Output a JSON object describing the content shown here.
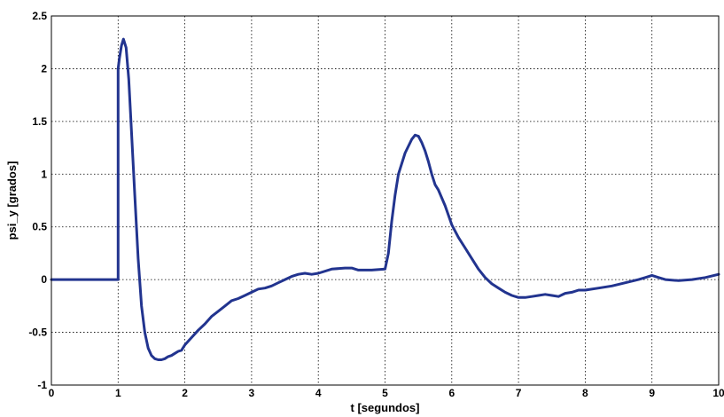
{
  "chart_data": {
    "type": "line",
    "title": "",
    "xlabel": "t  [segundos]",
    "ylabel": "psi_y  [grados]",
    "xlim": [
      0,
      10
    ],
    "ylim": [
      -1,
      2.5
    ],
    "xticks": [
      "0",
      "1",
      "2",
      "3",
      "4",
      "5",
      "6",
      "7",
      "8",
      "9",
      "10"
    ],
    "yticks": [
      "-1",
      "-0.5",
      "0",
      "0.5",
      "1",
      "1.5",
      "2",
      "2.5"
    ],
    "grid": true,
    "line_color": "#22348f",
    "series": [
      {
        "x": [
          0,
          1.0,
          1.0,
          1.02,
          1.05,
          1.08,
          1.12,
          1.16,
          1.2,
          1.25,
          1.3,
          1.35,
          1.4,
          1.45,
          1.5,
          1.55,
          1.6,
          1.65,
          1.7,
          1.75,
          1.8,
          1.85,
          1.9,
          1.95,
          2.0,
          2.1,
          2.2,
          2.3,
          2.4,
          2.5,
          2.6,
          2.7,
          2.8,
          2.9,
          3.0,
          3.1,
          3.2,
          3.3,
          3.4,
          3.5,
          3.6,
          3.7,
          3.8,
          3.9,
          4.0,
          4.2,
          4.4,
          4.5,
          4.6,
          4.8,
          5.0,
          5.05,
          5.1,
          5.15,
          5.2,
          5.3,
          5.4,
          5.45,
          5.5,
          5.55,
          5.6,
          5.65,
          5.7,
          5.75,
          5.8,
          5.9,
          6.0,
          6.1,
          6.2,
          6.3,
          6.4,
          6.5,
          6.6,
          6.7,
          6.8,
          6.9,
          7.0,
          7.1,
          7.2,
          7.3,
          7.4,
          7.5,
          7.6,
          7.7,
          7.8,
          7.9,
          8.0,
          8.2,
          8.4,
          8.6,
          8.8,
          8.9,
          9.0,
          9.1,
          9.2,
          9.4,
          9.6,
          9.8,
          10.0
        ],
        "y": [
          0,
          0,
          2.0,
          2.1,
          2.22,
          2.28,
          2.2,
          1.9,
          1.4,
          0.8,
          0.2,
          -0.25,
          -0.5,
          -0.65,
          -0.72,
          -0.75,
          -0.76,
          -0.76,
          -0.75,
          -0.73,
          -0.72,
          -0.7,
          -0.68,
          -0.67,
          -0.62,
          -0.55,
          -0.48,
          -0.42,
          -0.35,
          -0.3,
          -0.25,
          -0.2,
          -0.18,
          -0.15,
          -0.12,
          -0.09,
          -0.08,
          -0.06,
          -0.03,
          0.0,
          0.03,
          0.05,
          0.06,
          0.05,
          0.06,
          0.1,
          0.11,
          0.11,
          0.09,
          0.09,
          0.1,
          0.25,
          0.55,
          0.8,
          1.0,
          1.2,
          1.33,
          1.37,
          1.36,
          1.3,
          1.22,
          1.12,
          1.0,
          0.9,
          0.85,
          0.7,
          0.52,
          0.4,
          0.3,
          0.2,
          0.1,
          0.02,
          -0.04,
          -0.08,
          -0.12,
          -0.15,
          -0.17,
          -0.17,
          -0.16,
          -0.15,
          -0.14,
          -0.15,
          -0.16,
          -0.13,
          -0.12,
          -0.1,
          -0.1,
          -0.08,
          -0.06,
          -0.03,
          0.0,
          0.02,
          0.04,
          0.02,
          0.0,
          -0.01,
          0.0,
          0.02,
          0.05
        ]
      }
    ]
  }
}
